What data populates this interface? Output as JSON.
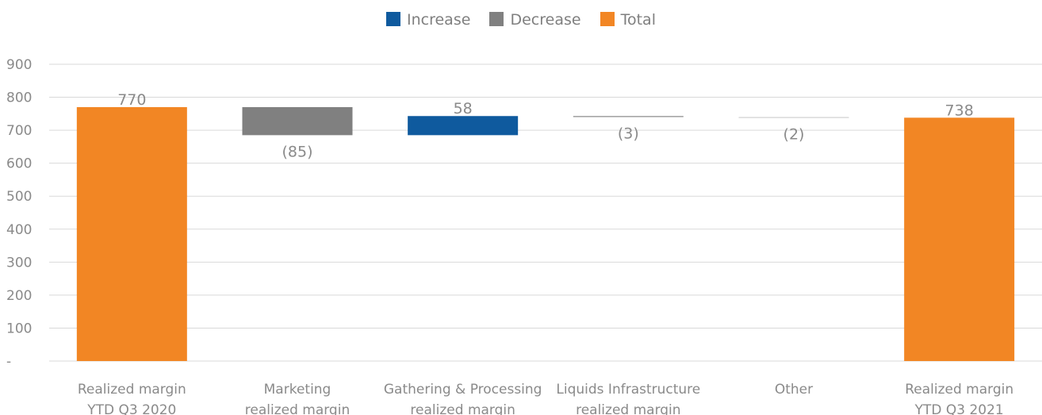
{
  "chart_data": {
    "type": "bar",
    "legend": [
      {
        "label": "Increase",
        "color": "#0f5a9e"
      },
      {
        "label": "Decrease",
        "color": "#808080"
      },
      {
        "label": "Total",
        "color": "#f28624"
      }
    ],
    "legend_position": "top-center",
    "categories": [
      [
        "Realized margin",
        "YTD Q3 2020"
      ],
      [
        "Marketing",
        "realized margin"
      ],
      [
        "Gathering & Processing",
        "realized margin"
      ],
      [
        "Liquids Infrastructure",
        "realized margin"
      ],
      [
        "Other"
      ],
      [
        "Realized margin",
        "YTD Q3 2021"
      ]
    ],
    "bars": [
      {
        "kind": "Total",
        "start": 0,
        "end": 770,
        "label": "770"
      },
      {
        "kind": "Decrease",
        "start": 770,
        "end": 685,
        "label": "(85)"
      },
      {
        "kind": "Increase",
        "start": 685,
        "end": 743,
        "label": "58"
      },
      {
        "kind": "Decrease",
        "start": 743,
        "end": 740,
        "label": "(3)"
      },
      {
        "kind": "Decrease",
        "start": 740,
        "end": 738,
        "label": "(2)"
      },
      {
        "kind": "Total",
        "start": 0,
        "end": 738,
        "label": "738"
      }
    ],
    "y_ticks": [
      "-",
      "100",
      "200",
      "300",
      "400",
      "500",
      "600",
      "700",
      "800",
      "900"
    ],
    "ylim": [
      0,
      900
    ],
    "grid": true
  }
}
